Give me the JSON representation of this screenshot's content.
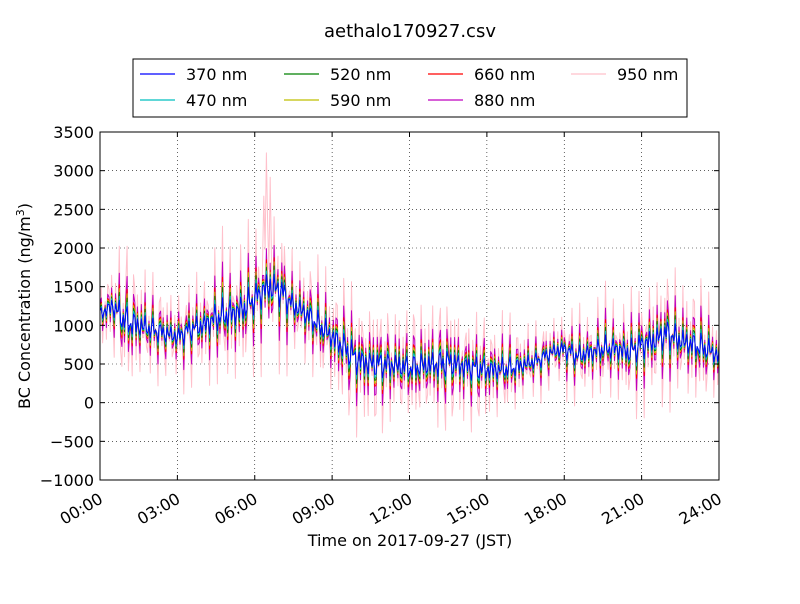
{
  "chart_data": {
    "type": "line",
    "title": "aethalo170927.csv",
    "xlabel": "Time on 2017-09-27 (JST)",
    "ylabel": "BC Concentration (ng/m",
    "ylabel_sup": "3",
    "ylabel_close": ")",
    "xlim": [
      "2017-09-27 00:00",
      "2017-09-28 00:00"
    ],
    "ylim": [
      -1000,
      3500
    ],
    "grid": true,
    "legend_position": "top-center",
    "x_ticks": [
      "00:00",
      "03:00",
      "06:00",
      "09:00",
      "12:00",
      "15:00",
      "18:00",
      "21:00",
      "24:00"
    ],
    "y_ticks": [
      3500,
      3000,
      2500,
      2000,
      1500,
      1000,
      500,
      0,
      -500,
      -1000
    ],
    "series": [
      {
        "name": "370 nm",
        "color": "#0000ff",
        "amp": 0.35
      },
      {
        "name": "470 nm",
        "color": "#00bfbf",
        "amp": 0.45
      },
      {
        "name": "520 nm",
        "color": "#008000",
        "amp": 0.55
      },
      {
        "name": "590 nm",
        "color": "#bfbf00",
        "amp": 0.65
      },
      {
        "name": "660 nm",
        "color": "#ff0000",
        "amp": 0.75
      },
      {
        "name": "880 nm",
        "color": "#bf00bf",
        "amp": 1.05
      },
      {
        "name": "950 nm",
        "color": "#ffc0cb",
        "amp": 1.75
      }
    ],
    "x_hours": [
      0,
      0.5,
      1,
      1.5,
      2,
      2.5,
      3,
      3.5,
      4,
      4.5,
      5,
      5.5,
      6,
      6.5,
      7,
      7.5,
      8,
      8.5,
      9,
      9.5,
      10,
      10.5,
      11,
      11.5,
      12,
      12.5,
      13,
      13.5,
      14,
      14.5,
      15,
      15.5,
      16,
      16.5,
      17,
      17.5,
      18,
      18.5,
      19,
      19.5,
      20,
      20.5,
      21,
      21.5,
      22,
      22.5,
      23,
      23.5,
      24
    ],
    "baseline_ng_m3": [
      1150,
      1250,
      1050,
      1000,
      950,
      900,
      850,
      950,
      1000,
      1100,
      1150,
      1200,
      1350,
      1500,
      1450,
      1250,
      1150,
      1000,
      850,
      700,
      550,
      500,
      500,
      480,
      450,
      480,
      500,
      520,
      480,
      450,
      430,
      430,
      450,
      500,
      550,
      650,
      700,
      600,
      650,
      700,
      700,
      650,
      750,
      800,
      900,
      800,
      750,
      700,
      600
    ],
    "swing_ng_m3": [
      300,
      500,
      700,
      600,
      500,
      450,
      450,
      500,
      550,
      650,
      700,
      700,
      650,
      800,
      700,
      500,
      550,
      550,
      600,
      650,
      700,
      650,
      600,
      600,
      550,
      600,
      650,
      650,
      600,
      550,
      550,
      500,
      450,
      400,
      350,
      350,
      400,
      450,
      450,
      500,
      500,
      550,
      600,
      650,
      650,
      600,
      600,
      550,
      450
    ]
  }
}
